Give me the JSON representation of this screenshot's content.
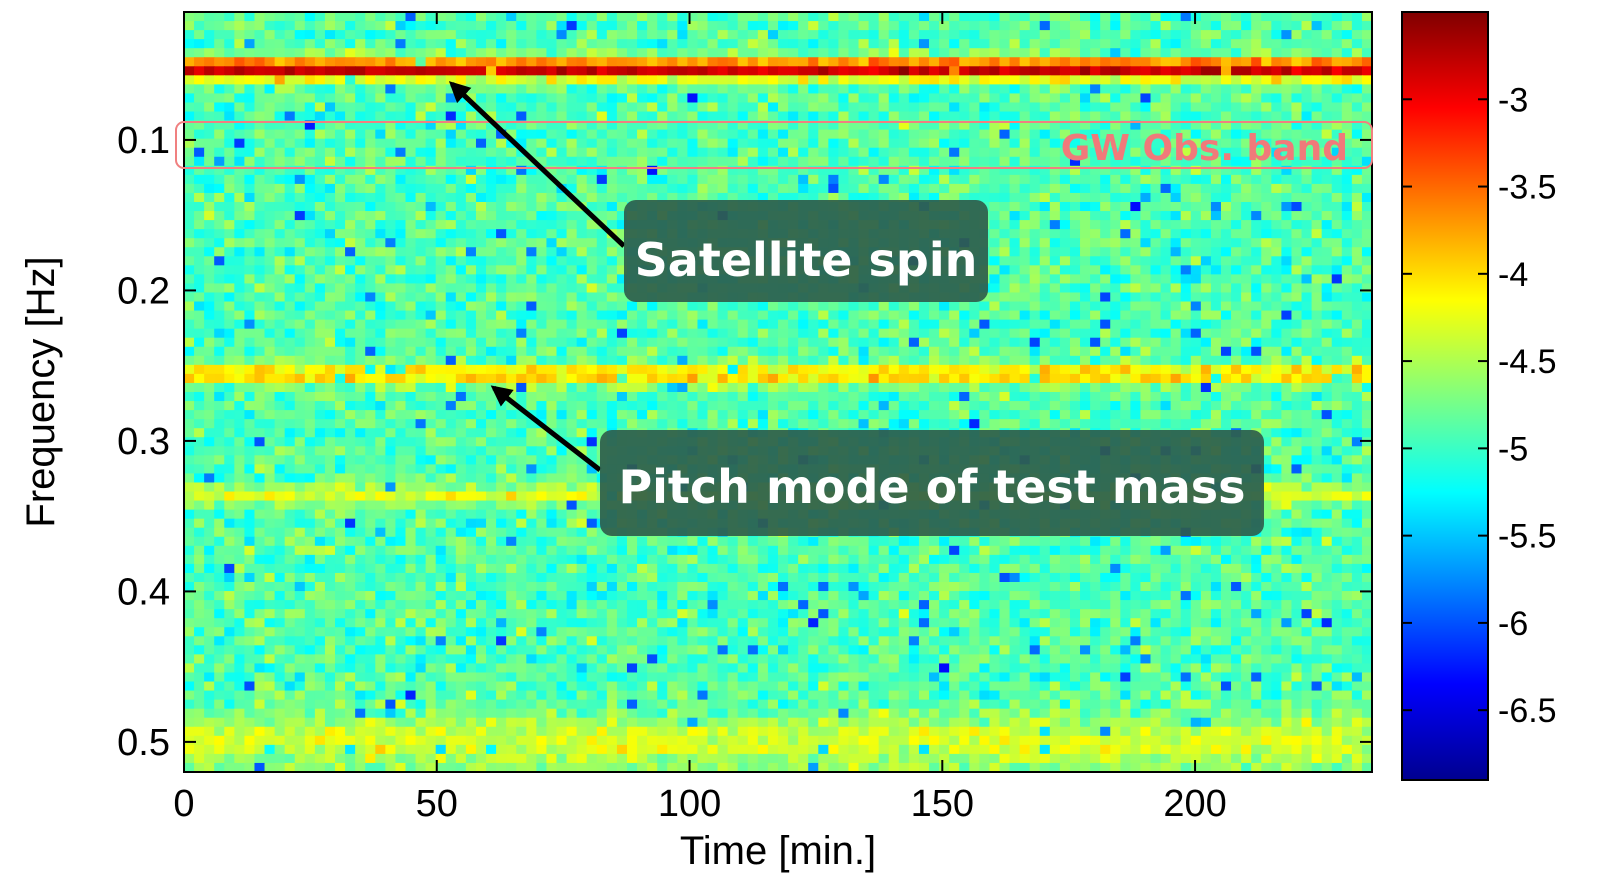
{
  "chart_data": {
    "type": "heatmap",
    "title": "",
    "xlabel": "Time [min.]",
    "ylabel": "Frequency [Hz]",
    "xlim": [
      0,
      235
    ],
    "ylim": [
      0.015,
      0.52
    ],
    "y_direction": "down",
    "x_ticks": [
      0,
      50,
      100,
      150,
      200
    ],
    "x_tick_labels": [
      "0",
      "50",
      "100",
      "150",
      "200"
    ],
    "y_ticks": [
      0.1,
      0.2,
      0.3,
      0.4,
      0.5
    ],
    "y_tick_labels": [
      "0.1",
      "0.2",
      "0.3",
      "0.4",
      "0.5"
    ],
    "colorbar": {
      "colormap": "jet",
      "range": [
        -6.9,
        -2.5
      ],
      "ticks": [
        -3,
        -3.5,
        -4,
        -4.5,
        -5,
        -5.5,
        -6,
        -6.5
      ],
      "tick_labels": [
        "-3",
        "-3.5",
        "-4",
        "-4.5",
        "-5",
        "-5.5",
        "-6",
        "-6.5"
      ]
    },
    "background_level": -4.9,
    "features": [
      {
        "label": "Satellite spin",
        "frequency": 0.053,
        "level": -2.75,
        "kind": "strong line"
      },
      {
        "label": "Pitch mode of test mass",
        "frequency": 0.256,
        "level": -3.9,
        "kind": "weak line"
      },
      {
        "label": "",
        "frequency": 0.336,
        "level": -4.3,
        "kind": "faint line"
      },
      {
        "label": "",
        "frequency": 0.5,
        "level": -4.3,
        "kind": "elevated noise"
      }
    ],
    "bands": [
      {
        "label": "GW Obs. band",
        "frequency_range": [
          0.085,
          0.115
        ],
        "color": "#f08080"
      }
    ]
  },
  "annotations": {
    "satellite_spin": "Satellite spin",
    "pitch_mode": "Pitch mode of test mass",
    "gw_band": "GW Obs. band"
  },
  "colors": {
    "callout_background": "#2f5e4c",
    "callout_text": "#ffffff",
    "band_outline": "#f08080",
    "band_text": "#f07a7a",
    "arrow": "#000000"
  }
}
